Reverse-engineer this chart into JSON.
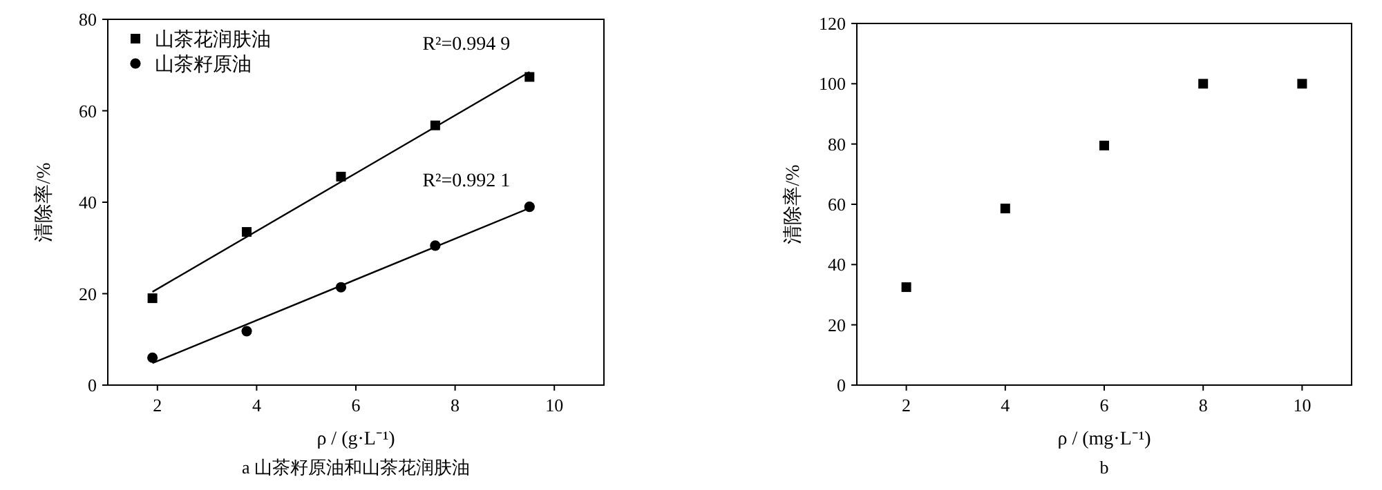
{
  "chart_data": [
    {
      "type": "scatter",
      "xlabel": "ρ / (g·L⁻¹)",
      "ylabel": "清除率/%",
      "xlim": [
        1,
        11
      ],
      "ylim": [
        0,
        80
      ],
      "xticks": [
        2,
        4,
        6,
        8,
        10
      ],
      "yticks": [
        0,
        20,
        40,
        60,
        80
      ],
      "legend": "top left",
      "series": [
        {
          "name": "山茶花润肤油",
          "type": "scatter",
          "marker": "square",
          "color": "#000000",
          "x": [
            1.9,
            3.8,
            5.7,
            7.6,
            9.5
          ],
          "values": [
            19,
            33.5,
            45.6,
            56.8,
            67.4
          ]
        },
        {
          "name": "山茶籽原油",
          "type": "scatter",
          "marker": "circle",
          "color": "#000000",
          "x": [
            1.9,
            3.8,
            5.7,
            7.6,
            9.5
          ],
          "values": [
            6,
            11.8,
            21.4,
            30.5,
            39
          ]
        },
        {
          "type": "line",
          "marker": "none",
          "color": "#000000",
          "x": [
            1.9,
            9.5
          ],
          "values": [
            20.4,
            68.5
          ]
        },
        {
          "type": "line",
          "marker": "none",
          "color": "#000000",
          "x": [
            1.9,
            9.5
          ],
          "values": [
            4.8,
            38.7
          ]
        }
      ],
      "annotations": [
        "R²=0.994 9",
        "R²=0.992 1",
        "a 山茶籽原油和山茶花润肤油"
      ]
    },
    {
      "type": "scatter",
      "xlabel": "ρ / (mg·L⁻¹)",
      "ylabel": "清除率/%",
      "xlim": [
        1,
        11
      ],
      "ylim": [
        0,
        120
      ],
      "xticks": [
        2,
        4,
        6,
        8,
        10
      ],
      "yticks": [
        0,
        20,
        40,
        60,
        80,
        100,
        120
      ],
      "series": [
        {
          "type": "scatter",
          "marker": "square",
          "color": "#000000",
          "x": [
            2,
            4,
            6,
            8,
            10
          ],
          "values": [
            32.5,
            58.6,
            79.5,
            100,
            100
          ]
        }
      ],
      "annotations": [
        "b"
      ]
    }
  ]
}
